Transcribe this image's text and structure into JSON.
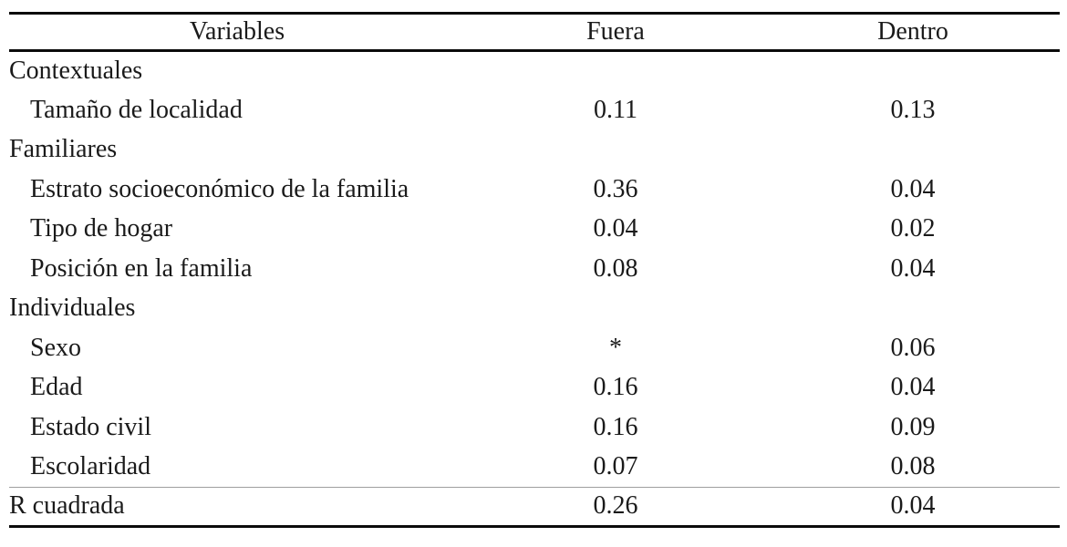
{
  "table": {
    "headers": [
      "Variables",
      "Fuera",
      "Dentro"
    ],
    "rows": [
      {
        "type": "section",
        "label": "Contextuales",
        "fuera": "",
        "dentro": ""
      },
      {
        "type": "item",
        "label": "Tamaño de localidad",
        "fuera": "0.11",
        "dentro": "0.13"
      },
      {
        "type": "section",
        "label": "Familiares",
        "fuera": "",
        "dentro": ""
      },
      {
        "type": "item",
        "label": "Estrato socioeconómico de la familia",
        "fuera": "0.36",
        "dentro": "0.04"
      },
      {
        "type": "item",
        "label": "Tipo de hogar",
        "fuera": "0.04",
        "dentro": "0.02"
      },
      {
        "type": "item",
        "label": "Posición en la familia",
        "fuera": "0.08",
        "dentro": "0.04"
      },
      {
        "type": "section",
        "label": "Individuales",
        "fuera": "",
        "dentro": ""
      },
      {
        "type": "item",
        "label": "Sexo",
        "fuera": "*",
        "dentro": "0.06"
      },
      {
        "type": "item",
        "label": "Edad",
        "fuera": "0.16",
        "dentro": "0.04"
      },
      {
        "type": "item",
        "label": "Estado civil",
        "fuera": "0.16",
        "dentro": "0.09"
      },
      {
        "type": "item",
        "label": "Escolaridad",
        "fuera": "0.07",
        "dentro": "0.08"
      },
      {
        "type": "summary",
        "label": "R cuadrada",
        "fuera": "0.26",
        "dentro": "0.04"
      }
    ]
  }
}
